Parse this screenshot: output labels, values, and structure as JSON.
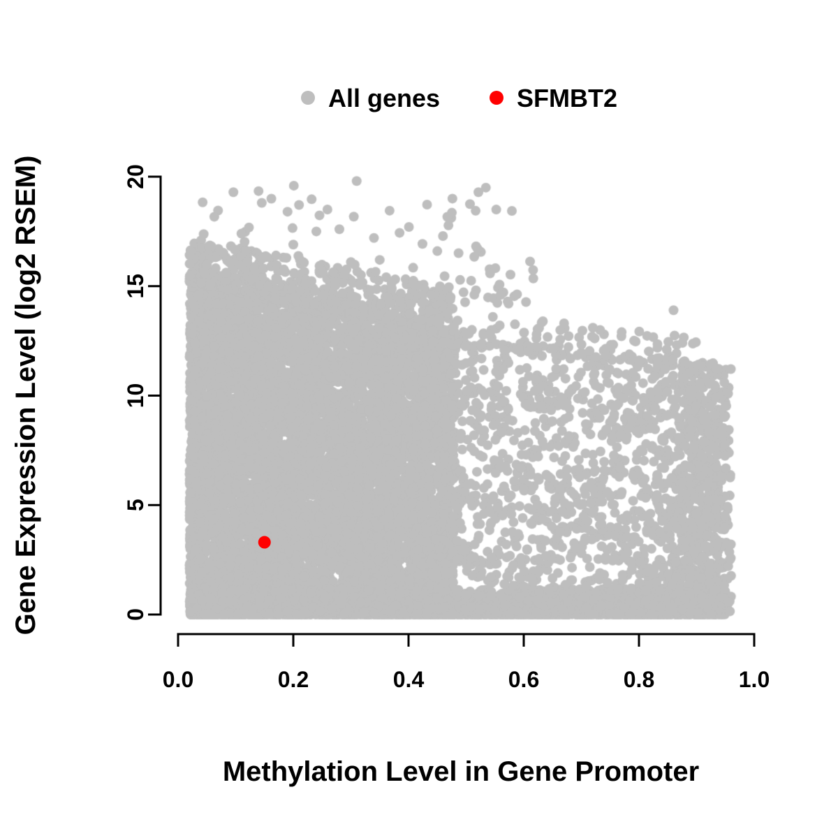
{
  "figure": {
    "background": "#ffffff",
    "axis_color": "#000000"
  },
  "chart_data": {
    "type": "scatter",
    "title": "",
    "xlabel": "Methylation Level in Gene Promoter",
    "ylabel": "Gene Expression Level (log2 RSEM)",
    "xlim": [
      0,
      1
    ],
    "ylim": [
      0,
      20
    ],
    "x_ticks": [
      0,
      0.2,
      0.4,
      0.6,
      0.8,
      1
    ],
    "x_tick_labels": [
      "0.0",
      "0.2",
      "0.4",
      "0.6",
      "0.8",
      "1.0"
    ],
    "y_ticks": [
      0,
      5,
      10,
      15,
      20
    ],
    "y_tick_labels": [
      "0",
      "5",
      "10",
      "15",
      "20"
    ],
    "grid": false,
    "legend_position": "top-center",
    "legend": [
      {
        "label": "All genes",
        "color": "#bebebe",
        "marker": "circle"
      },
      {
        "label": "SFMBT2",
        "color": "#ff0000",
        "marker": "circle"
      }
    ],
    "highlight_point": {
      "name": "SFMBT2",
      "x": 0.15,
      "y": 3.3,
      "color": "#ff0000",
      "radius": 9
    },
    "all_genes_cloud": {
      "seed": 1337,
      "color": "#bebebe",
      "point_radius": 7,
      "components": [
        {
          "name": "dense-low-methylation-block",
          "n": 6800,
          "x": {
            "min": 0.02,
            "max": 0.48,
            "pow": 1.25
          },
          "y": {
            "type": "envelope",
            "a": 15.3,
            "b": -5.0,
            "pow": 1.0
          }
        },
        {
          "name": "dense-block-upper-fringe",
          "n": 550,
          "x": {
            "min": 0.02,
            "max": 0.48,
            "pow": 1.2
          },
          "y": {
            "type": "fringe",
            "a": 15.3,
            "b": -5.0,
            "c": 2.0,
            "k": 2.2
          }
        },
        {
          "name": "bottom-strip",
          "n": 2600,
          "x": {
            "min": 0.02,
            "max": 0.95,
            "pow": 1.15
          },
          "y": {
            "type": "range",
            "min": 0,
            "max": 1.2,
            "pow": 2.6
          }
        },
        {
          "name": "mid-high-methylation-spread",
          "n": 1600,
          "x": {
            "min": 0.4,
            "max": 0.96,
            "pow": 1.0
          },
          "y": {
            "type": "envelope",
            "a": 13.5,
            "b": -2.5,
            "pow": 1.2
          }
        },
        {
          "name": "mid-high-upper-fringe",
          "n": 180,
          "x": {
            "min": 0.42,
            "max": 0.9,
            "pow": 1.0
          },
          "y": {
            "type": "fringe",
            "a": 13.5,
            "b": -2.5,
            "c": 1.5,
            "k": 2.0
          }
        },
        {
          "name": "right-dense-band",
          "n": 420,
          "x": {
            "dist": "gauss",
            "mean": 0.905,
            "sd": 0.03,
            "min": 0.84,
            "max": 0.96
          },
          "y": {
            "type": "range",
            "min": 0,
            "max": 11.5,
            "pow": 1.1
          }
        },
        {
          "name": "upper-outliers",
          "n": 150,
          "x": {
            "min": 0.04,
            "max": 0.62,
            "pow": 1.1
          },
          "y": {
            "type": "range",
            "min": 14.2,
            "max": 19.6,
            "pow": 3.0
          }
        }
      ],
      "notable_points": [
        [
          0.31,
          19.8
        ],
        [
          0.19,
          18.4
        ],
        [
          0.28,
          17.6
        ],
        [
          0.24,
          17.5
        ],
        [
          0.11,
          17.4
        ],
        [
          0.34,
          17.2
        ],
        [
          0.2,
          16.9
        ],
        [
          0.45,
          16.6
        ],
        [
          0.52,
          16.7
        ],
        [
          0.17,
          16.4
        ],
        [
          0.35,
          16.2
        ],
        [
          0.3,
          16.1
        ],
        [
          0.12,
          16.1
        ],
        [
          0.05,
          16.0
        ],
        [
          0.56,
          14.6
        ],
        [
          0.67,
          13.3
        ],
        [
          0.72,
          13.1
        ],
        [
          0.86,
          13.9
        ],
        [
          0.77,
          12.9
        ]
      ]
    }
  }
}
